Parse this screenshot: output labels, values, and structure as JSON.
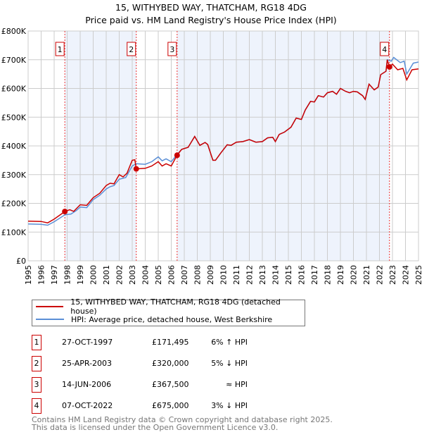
{
  "title": "15, WITHYBED WAY, THATCHAM, RG18 4DG",
  "subtitle": "Price paid vs. HM Land Registry's House Price Index (HPI)",
  "chart_data": {
    "type": "line",
    "xlim": [
      1995,
      2025
    ],
    "ylim": [
      0,
      800000
    ],
    "yticks": [
      "£0",
      "£100K",
      "£200K",
      "£300K",
      "£400K",
      "£500K",
      "£600K",
      "£700K",
      "£800K"
    ],
    "xticks": [
      "1995",
      "1996",
      "1997",
      "1998",
      "1999",
      "2000",
      "2001",
      "2002",
      "2003",
      "2004",
      "2005",
      "2006",
      "2007",
      "2008",
      "2009",
      "2010",
      "2011",
      "2012",
      "2013",
      "2014",
      "2015",
      "2016",
      "2017",
      "2018",
      "2019",
      "2020",
      "2021",
      "2022",
      "2023",
      "2024",
      "2025"
    ],
    "series": [
      {
        "name": "15, WITHYBED WAY, THATCHAM, RG18 4DG (detached house)",
        "color": "#cc0000",
        "x": [
          1995,
          1996,
          1996.5,
          1997,
          1997.82,
          1998.2,
          1998.5,
          1999,
          1999.5,
          2000,
          2000.5,
          2001,
          2001.3,
          2001.6,
          2002,
          2002.3,
          2002.6,
          2003,
          2003.2,
          2003.31,
          2004,
          2004.5,
          2005,
          2005.3,
          2005.6,
          2006,
          2006.45,
          2006.8,
          2007.3,
          2007.8,
          2008.2,
          2008.6,
          2008.8,
          2009.2,
          2009.4,
          2009.8,
          2010.3,
          2010.6,
          2011,
          2011.5,
          2012,
          2012.5,
          2013,
          2013.4,
          2013.8,
          2014,
          2014.3,
          2014.7,
          2015.2,
          2015.6,
          2016,
          2016.3,
          2016.7,
          2017,
          2017.3,
          2017.7,
          2018,
          2018.4,
          2018.7,
          2019,
          2019.4,
          2019.7,
          2020,
          2020.3,
          2020.7,
          2020.9,
          2021.2,
          2021.6,
          2021.9,
          2022.1,
          2022.5,
          2022.6,
          2022.77,
          2023,
          2023.4,
          2023.8,
          2024.1,
          2024.5,
          2025
        ],
        "y": [
          138,
          137,
          132,
          145,
          171.5,
          178,
          172,
          195,
          193,
          220,
          235,
          262,
          270,
          268,
          300,
          292,
          305,
          350,
          352,
          320,
          322,
          330,
          345,
          330,
          338,
          330,
          367.5,
          388,
          395,
          433,
          402,
          412,
          405,
          350,
          350,
          375,
          404,
          402,
          413,
          415,
          422,
          413,
          415,
          428,
          430,
          415,
          440,
          448,
          465,
          497,
          492,
          525,
          555,
          553,
          575,
          570,
          585,
          590,
          580,
          600,
          590,
          585,
          590,
          588,
          575,
          562,
          615,
          595,
          605,
          648,
          660,
          700,
          675,
          685,
          665,
          670,
          630,
          665,
          668
        ]
      },
      {
        "name": "HPI: Average price, detached house, West Berkshire",
        "color": "#5b8fd6",
        "x": [
          1995,
          1996,
          1996.5,
          1997,
          1997.82,
          1998.3,
          1998.7,
          1999,
          1999.5,
          2000,
          2000.5,
          2001,
          2001.3,
          2001.6,
          2002,
          2002.5,
          2003,
          2003.3,
          2004,
          2004.5,
          2005,
          2005.3,
          2005.6,
          2006,
          2006.45,
          2006.8,
          2007.3,
          2007.8,
          2008.2,
          2008.6,
          2008.8,
          2009.2,
          2009.4,
          2009.8,
          2010.3,
          2010.6,
          2011,
          2011.5,
          2012,
          2012.5,
          2013,
          2013.4,
          2013.8,
          2014,
          2014.3,
          2014.7,
          2015.2,
          2015.6,
          2016,
          2016.3,
          2016.7,
          2017,
          2017.3,
          2017.7,
          2018,
          2018.4,
          2018.7,
          2019,
          2019.4,
          2019.7,
          2020,
          2020.3,
          2020.7,
          2020.9,
          2021.2,
          2021.6,
          2021.9,
          2022.1,
          2022.5,
          2022.6,
          2022.9,
          2023.1,
          2023.6,
          2023.9,
          2024.1,
          2024.6,
          2025
        ],
        "y": [
          128,
          127,
          124,
          136,
          160,
          163,
          175,
          187,
          185,
          213,
          228,
          250,
          258,
          262,
          284,
          290,
          330,
          338,
          336,
          345,
          362,
          348,
          355,
          345,
          370,
          388,
          395,
          433,
          402,
          412,
          405,
          350,
          350,
          375,
          404,
          402,
          413,
          415,
          422,
          413,
          415,
          428,
          430,
          415,
          440,
          448,
          465,
          497,
          492,
          525,
          555,
          553,
          575,
          570,
          585,
          590,
          580,
          600,
          590,
          585,
          590,
          588,
          575,
          562,
          615,
          595,
          605,
          648,
          660,
          700,
          695,
          708,
          690,
          695,
          650,
          688,
          692
        ]
      }
    ],
    "y_unit": "thousands GBP",
    "sales": [
      {
        "id": "1",
        "date": "27-OCT-1997",
        "x": 1997.82,
        "price": "£171,495",
        "price_value": 171.495,
        "hpi": "6% ↑ HPI"
      },
      {
        "id": "2",
        "date": "25-APR-2003",
        "x": 2003.31,
        "price": "£320,000",
        "price_value": 320,
        "hpi": "5% ↓ HPI"
      },
      {
        "id": "3",
        "date": "14-JUN-2006",
        "x": 2006.45,
        "price": "£367,500",
        "price_value": 367.5,
        "hpi": "≈ HPI"
      },
      {
        "id": "4",
        "date": "07-OCT-2022",
        "x": 2022.77,
        "price": "£675,000",
        "price_value": 675,
        "hpi": "3% ↓ HPI"
      }
    ],
    "grid": true,
    "legend": "below"
  },
  "footer": [
    "Contains HM Land Registry data © Crown copyright and database right 2025.",
    "This data is licensed under the Open Government Licence v3.0."
  ]
}
